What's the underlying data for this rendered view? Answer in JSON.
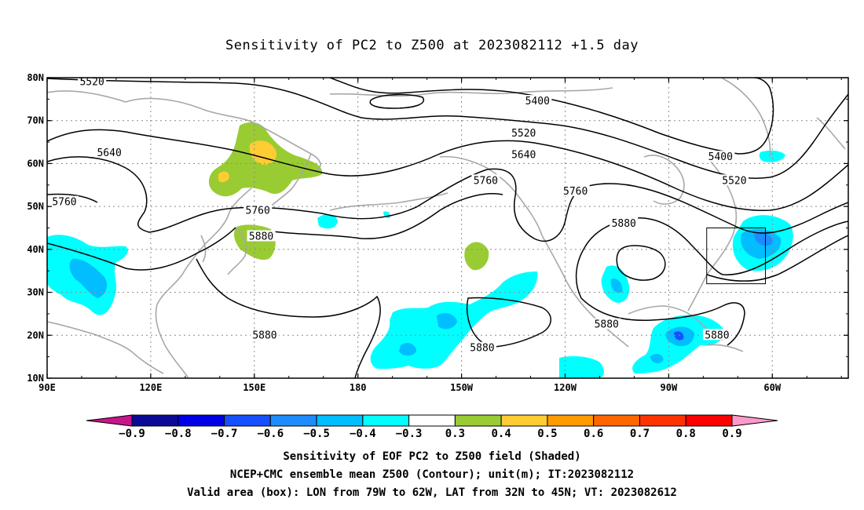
{
  "title": "Sensitivity of PC2 to Z500 at 2023082112 +1.5 day",
  "captions": [
    "Sensitivity of EOF PC2 to Z500 field (Shaded)",
    "NCEP+CMC ensemble mean Z500 (Contour); unit(m); IT:2023082112",
    "Valid area (box): LON from 79W to 62W, LAT from 32N to 45N; VT: 2023082612"
  ],
  "chart_data": {
    "type": "heatmap",
    "x_tick_labels": [
      "90E",
      "120E",
      "150E",
      "180",
      "150W",
      "120W",
      "90W",
      "60W"
    ],
    "x_tick_lon": [
      90,
      120,
      150,
      180,
      210,
      240,
      270,
      300
    ],
    "y_tick_labels": [
      "10N",
      "20N",
      "30N",
      "40N",
      "50N",
      "60N",
      "70N",
      "80N"
    ],
    "y_tick_lat": [
      10,
      20,
      30,
      40,
      50,
      60,
      70,
      80
    ],
    "lon_range": [
      90,
      322
    ],
    "lat_range": [
      10,
      80
    ],
    "grid": "dotted",
    "colorbar": {
      "labels": [
        "-0.9",
        "-0.8",
        "-0.7",
        "-0.6",
        "-0.5",
        "-0.4",
        "-0.3",
        "0.3",
        "0.4",
        "0.5",
        "0.6",
        "0.7",
        "0.8",
        "0.9"
      ],
      "colors": [
        "#0a0a96",
        "#0000e6",
        "#1650ff",
        "#1e8cff",
        "#00beff",
        "#00ffff",
        "#ffffff",
        "#99cc33",
        "#ffcc33",
        "#ff9a00",
        "#ff6600",
        "#ff3300",
        "#ff0000"
      ],
      "low_end_color": "#c8148c",
      "high_end_color": "#ff99cc"
    },
    "contour_labels": [
      {
        "text": "5520",
        "lon": 103,
        "lat": 79
      },
      {
        "text": "5640",
        "lon": 108,
        "lat": 62.5
      },
      {
        "text": "5760",
        "lon": 95,
        "lat": 51
      },
      {
        "text": "5760",
        "lon": 151,
        "lat": 49
      },
      {
        "text": "5880",
        "lon": 152,
        "lat": 43
      },
      {
        "text": "5880",
        "lon": 153,
        "lat": 20
      },
      {
        "text": "5400",
        "lon": 232,
        "lat": 74.5
      },
      {
        "text": "5520",
        "lon": 228,
        "lat": 67
      },
      {
        "text": "5640",
        "lon": 228,
        "lat": 62
      },
      {
        "text": "5760",
        "lon": 217,
        "lat": 56
      },
      {
        "text": "5760",
        "lon": 243,
        "lat": 53.5
      },
      {
        "text": "5880",
        "lon": 257,
        "lat": 46
      },
      {
        "text": "5880",
        "lon": 216,
        "lat": 17
      },
      {
        "text": "5880",
        "lon": 252,
        "lat": 22.5
      },
      {
        "text": "5880",
        "lon": 284,
        "lat": 20
      },
      {
        "text": "5400",
        "lon": 285,
        "lat": 61.5
      },
      {
        "text": "5520",
        "lon": 289,
        "lat": 56
      }
    ],
    "valid_box": {
      "lon": [
        281,
        298
      ],
      "lat": [
        32,
        45
      ]
    }
  }
}
